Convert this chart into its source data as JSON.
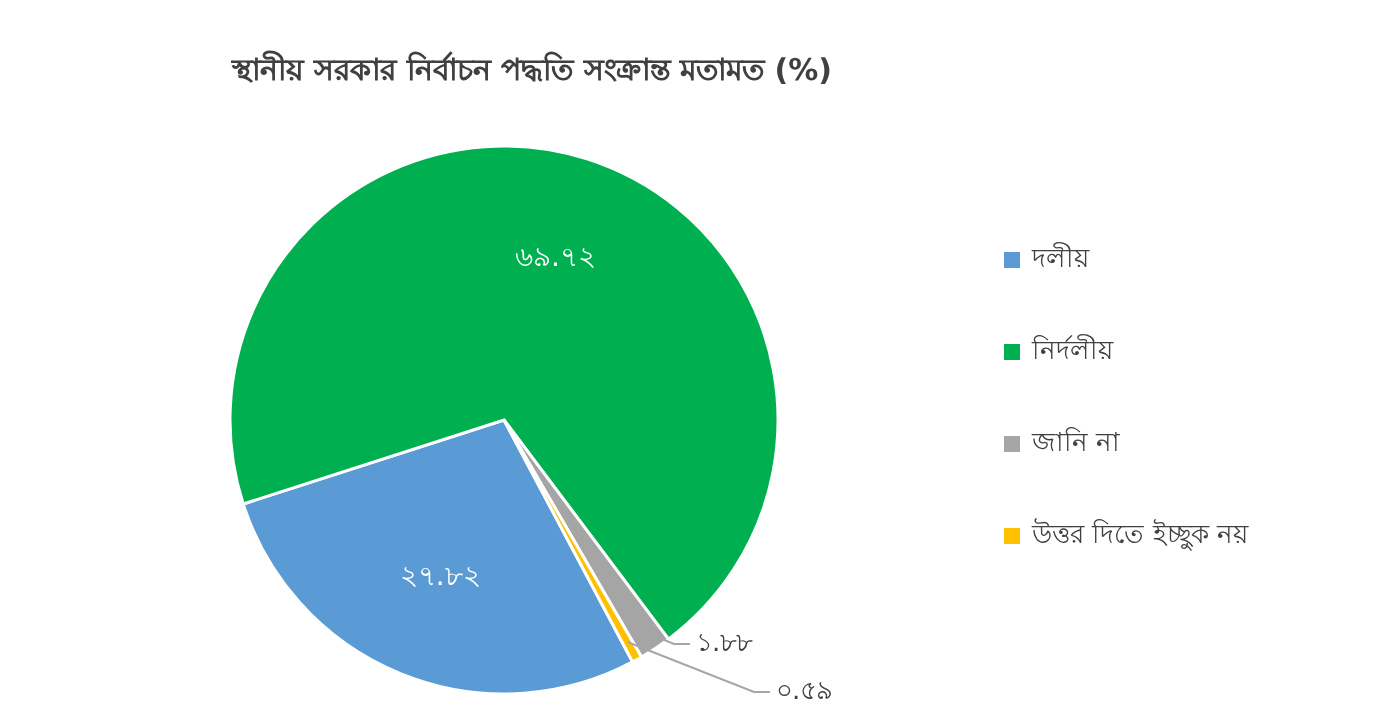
{
  "chart_data": {
    "type": "pie",
    "title": "স্থানীয় সরকার নির্বাচন পদ্ধতি সংক্রান্ত মতামত (%)",
    "categories": [
      "দলীয়",
      "নির্দলীয়",
      "জানি না",
      "উত্তর দিতে ইচ্ছুক নয়"
    ],
    "values": [
      27.82,
      69.72,
      1.88,
      0.59
    ],
    "value_labels": [
      "২৭.৮২",
      "৬৯.৭২",
      "১.৮৮",
      "০.৫৯"
    ],
    "colors": [
      "#5b9bd5",
      "#00b050",
      "#a5a5a5",
      "#ffc000"
    ],
    "legend": "right"
  }
}
